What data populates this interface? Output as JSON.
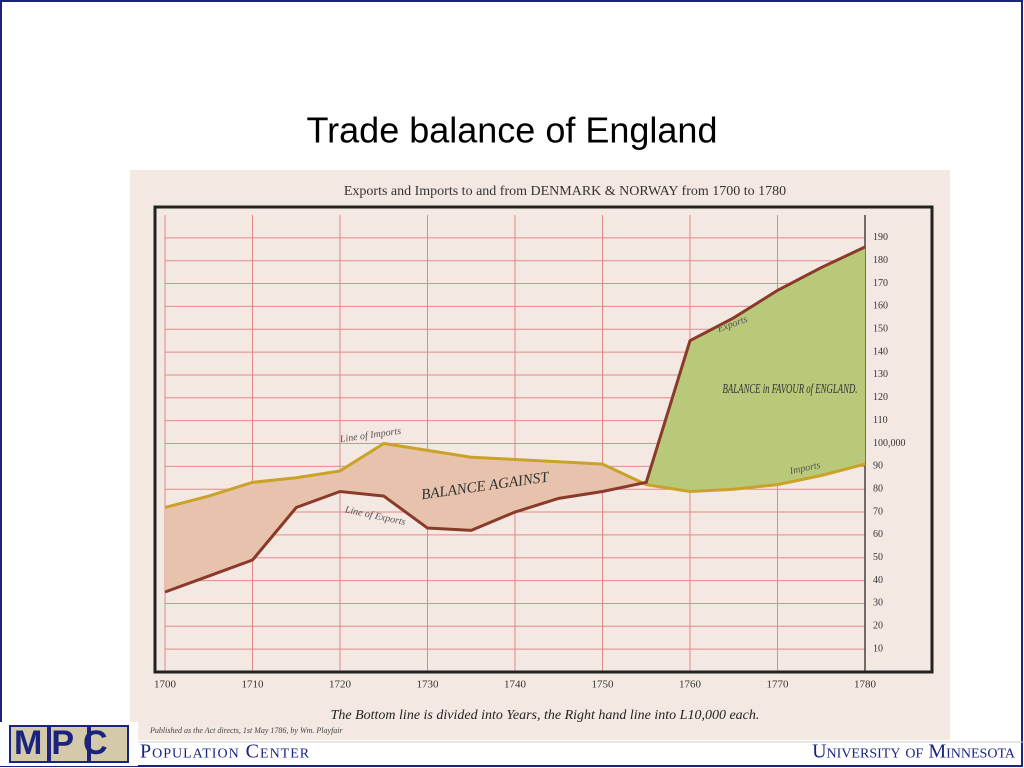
{
  "slide_title": "Trade balance of England",
  "chart_data": {
    "type": "line",
    "title": "Exports and Imports to and from DENMARK & NORWAY from 1700 to 1780",
    "x": [
      1700,
      1705,
      1710,
      1715,
      1720,
      1725,
      1730,
      1735,
      1740,
      1745,
      1750,
      1755,
      1760,
      1765,
      1770,
      1775,
      1780
    ],
    "series": [
      {
        "name": "Imports",
        "color": "#c9a227",
        "values": [
          72,
          77,
          83,
          85,
          88,
          100,
          97,
          94,
          93,
          92,
          91,
          82,
          79,
          80,
          82,
          86,
          91
        ]
      },
      {
        "name": "Exports",
        "color": "#8b3a2a",
        "values": [
          35,
          42,
          49,
          72,
          79,
          77,
          63,
          62,
          70,
          76,
          79,
          83,
          145,
          155,
          167,
          177,
          186
        ]
      }
    ],
    "line_labels": [
      "Line of Imports",
      "Line of Exports"
    ],
    "annotations": [
      "BALANCE AGAINST",
      "BALANCE in FAVOUR of ENGLAND."
    ],
    "xlim": [
      1700,
      1780
    ],
    "xticks": [
      1700,
      1710,
      1720,
      1730,
      1740,
      1750,
      1760,
      1770,
      1780
    ],
    "ylim": [
      0,
      200
    ],
    "yticks": [
      10,
      20,
      30,
      40,
      50,
      60,
      70,
      80,
      90,
      {
        "value": 100,
        "label": "100,000"
      },
      110,
      120,
      130,
      140,
      150,
      160,
      170,
      180,
      190
    ],
    "xlabel": "The Bottom line is divided into Years, the Right hand line into L10,000 each.",
    "note": "Published as the Act directs, 1st May 1786, by Wm. Playfair",
    "grid": true,
    "fill_colors": {
      "against": "#e7c3ad",
      "favour": "#b9c97a"
    }
  },
  "footer": {
    "logo": "MPC",
    "center": "Population Center",
    "university": "University of Minnesota"
  }
}
